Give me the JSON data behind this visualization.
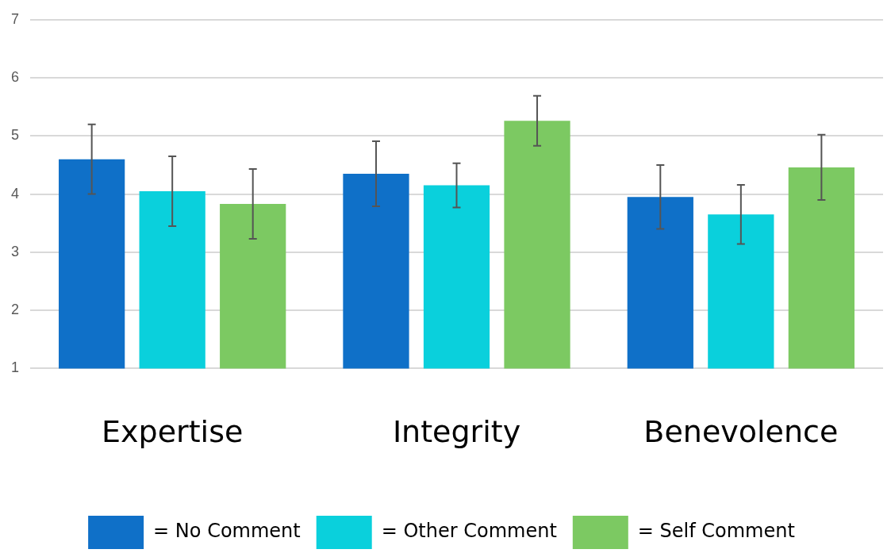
{
  "chart_data": {
    "type": "bar",
    "categories": [
      "Expertise",
      "Integrity",
      "Benevolence"
    ],
    "series": [
      {
        "name": "= No Comment",
        "color": "#0f70c8",
        "values": [
          4.6,
          4.35,
          3.95
        ],
        "errors": [
          0.6,
          0.56,
          0.55
        ]
      },
      {
        "name": "= Other Comment",
        "color": "#0ad0dc",
        "values": [
          4.05,
          4.15,
          3.65
        ],
        "errors": [
          0.6,
          0.38,
          0.51
        ]
      },
      {
        "name": "= Self Comment",
        "color": "#7cc962",
        "values": [
          3.83,
          5.26,
          4.46
        ],
        "errors": [
          0.6,
          0.43,
          0.56
        ]
      }
    ],
    "ylim": [
      1,
      7
    ],
    "yticks": [
      1,
      2,
      3,
      4,
      5,
      6,
      7
    ],
    "grid": "y",
    "legend": "bottom"
  }
}
